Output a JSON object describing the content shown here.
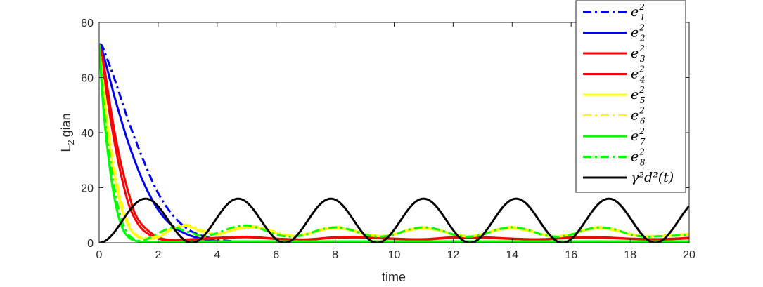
{
  "chart_data": {
    "type": "line",
    "xlabel": "time",
    "ylabel": "gian",
    "ylabel_prefix": "L",
    "ylabel_sub": "2",
    "xlim": [
      0,
      20
    ],
    "ylim": [
      0,
      80
    ],
    "xticks": [
      "0",
      "2",
      "4",
      "6",
      "8",
      "10",
      "12",
      "14",
      "16",
      "18",
      "20"
    ],
    "yticks": [
      "0",
      "20",
      "40",
      "60",
      "80"
    ],
    "grid": false,
    "legend_position": "top-right",
    "series": [
      {
        "name": "e",
        "sub": "1",
        "sup": "2",
        "color": "#0000ff",
        "dash": "dashdot",
        "x": [
          0,
          0.1,
          0.3,
          0.6,
          1.0,
          1.5,
          2.0,
          2.5,
          3.0,
          3.5,
          4.0,
          4.5,
          5.0,
          5.5,
          6.0,
          8,
          10,
          12,
          14,
          16,
          18,
          20
        ],
        "y": [
          72,
          71.5,
          66,
          57,
          44,
          30,
          18,
          10,
          5,
          2.5,
          1.2,
          0.6,
          0.3,
          0.15,
          0.1,
          0.1,
          0.1,
          0.1,
          0.1,
          0.1,
          0.1,
          0.1
        ]
      },
      {
        "name": "e",
        "sub": "2",
        "sup": "2",
        "color": "#0000ff",
        "dash": "solid",
        "x": [
          0,
          0.1,
          0.3,
          0.6,
          1.0,
          1.5,
          2.0,
          2.5,
          3.0,
          3.5,
          4.0,
          4.5,
          5.0,
          6.0,
          8,
          10,
          12,
          14,
          16,
          18,
          20
        ],
        "y": [
          72,
          70,
          62,
          50,
          36,
          22,
          12,
          6,
          3,
          1.4,
          0.6,
          0.3,
          0.15,
          0.1,
          0.1,
          0.1,
          0.1,
          0.1,
          0.1,
          0.1,
          0.1
        ]
      },
      {
        "name": "e",
        "sub": "3",
        "sup": "2",
        "color": "#ff0000",
        "dash": "solid",
        "x": [
          0,
          0.1,
          0.2,
          0.4,
          0.6,
          0.8,
          1.0,
          1.2,
          1.5,
          2.0,
          2.5,
          3.0,
          4.0,
          5.0,
          6.0,
          7.0,
          8.0,
          9.0,
          10.0,
          11.0,
          12.0,
          13.0,
          14.0,
          15.0,
          16.0,
          17.0,
          18.0,
          19.0,
          20.0
        ],
        "y": [
          72,
          65,
          58,
          44,
          32,
          22,
          14,
          9,
          4.5,
          1.5,
          0.8,
          1.0,
          1.6,
          2.0,
          1.4,
          1.1,
          1.8,
          1.9,
          1.4,
          1.2,
          1.8,
          1.8,
          1.4,
          1.2,
          1.8,
          1.8,
          1.4,
          1.2,
          1.6
        ]
      },
      {
        "name": "e",
        "sub": "4",
        "sup": "2",
        "color": "#ff0000",
        "dash": "solid",
        "x": [
          0,
          0.1,
          0.2,
          0.4,
          0.6,
          0.8,
          1.0,
          1.2,
          1.5,
          2.0,
          2.5,
          3.0,
          4.0,
          5.0,
          6.0,
          7.0,
          8.0,
          9.0,
          10.0,
          11.0,
          12.0,
          13.0,
          14.0,
          15.0,
          16.0,
          17.0,
          18.0,
          19.0,
          20.0
        ],
        "y": [
          72,
          68,
          62,
          48,
          36,
          26,
          18,
          11,
          6,
          2.0,
          1.0,
          1.2,
          1.8,
          2.2,
          1.5,
          1.2,
          2.0,
          2.1,
          1.5,
          1.3,
          2.0,
          2.0,
          1.5,
          1.3,
          2.0,
          2.0,
          1.5,
          1.3,
          1.8
        ]
      },
      {
        "name": "e",
        "sub": "5",
        "sup": "2",
        "color": "#ffff00",
        "dash": "solid",
        "x": [
          0,
          0.1,
          0.2,
          0.4,
          0.6,
          0.8,
          1.0,
          1.2,
          1.5,
          2.0,
          2.5,
          3.0,
          3.5,
          4.0,
          4.5,
          5.0,
          5.5,
          6.0,
          6.5,
          7.0,
          7.5,
          8.0,
          8.5,
          9.0,
          9.5,
          10.0,
          10.5,
          11.0,
          11.5,
          12.0,
          12.5,
          13.0,
          13.5,
          14.0,
          14.5,
          15.0,
          15.5,
          16.0,
          16.5,
          17.0,
          17.5,
          18.0,
          18.5,
          19.0,
          19.5,
          20.0
        ],
        "y": [
          72,
          60,
          50,
          32,
          20,
          11,
          6,
          3,
          1.5,
          2.0,
          5.0,
          6.0,
          4.0,
          3.0,
          4.5,
          5.5,
          5.2,
          3.5,
          2.5,
          3.0,
          4.5,
          5.3,
          4.6,
          3.0,
          2.4,
          3.0,
          4.5,
          5.2,
          4.5,
          3.0,
          2.3,
          3.0,
          4.6,
          5.3,
          4.5,
          3.0,
          2.3,
          3.0,
          4.6,
          5.3,
          4.5,
          3.0,
          2.3,
          2.4,
          2.6,
          3.0
        ]
      },
      {
        "name": "e",
        "sub": "6",
        "sup": "2",
        "color": "#ffff00",
        "dash": "dashdot",
        "x": [
          0,
          0.1,
          0.2,
          0.4,
          0.6,
          0.8,
          1.0,
          1.2,
          1.5,
          2.0,
          2.5,
          3.0,
          3.5,
          4.0,
          4.5,
          5.0,
          5.5,
          6.0,
          6.5,
          7.0,
          7.5,
          8.0,
          8.5,
          9.0,
          9.5,
          10.0,
          10.5,
          11.0,
          11.5,
          12.0,
          12.5,
          13.0,
          13.5,
          14.0,
          14.5,
          15.0,
          15.5,
          16.0,
          16.5,
          17.0,
          17.5,
          18.0,
          18.5,
          19.0,
          19.5,
          20.0
        ],
        "y": [
          72,
          62,
          52,
          35,
          22,
          13,
          7,
          3.5,
          1.8,
          2.5,
          5.5,
          6.5,
          4.5,
          3.2,
          4.8,
          6.0,
          5.6,
          3.8,
          2.7,
          3.2,
          4.8,
          5.7,
          5.0,
          3.2,
          2.6,
          3.2,
          4.8,
          5.6,
          4.8,
          3.2,
          2.5,
          3.2,
          4.9,
          5.7,
          4.8,
          3.2,
          2.5,
          3.2,
          4.9,
          5.7,
          4.8,
          3.2,
          2.5,
          2.6,
          2.8,
          3.2
        ]
      },
      {
        "name": "e",
        "sub": "7",
        "sup": "2",
        "color": "#00ff00",
        "dash": "solid",
        "x": [
          0,
          0.1,
          0.2,
          0.4,
          0.6,
          0.8,
          1.0,
          1.2,
          1.5,
          2.0,
          3.0,
          4.0,
          6.0,
          8.0,
          10.0,
          12.0,
          14.0,
          16.0,
          18.0,
          20.0
        ],
        "y": [
          72,
          55,
          42,
          24,
          12,
          5,
          2,
          0.8,
          0.3,
          0.2,
          0.4,
          0.5,
          0.5,
          0.5,
          0.5,
          0.5,
          0.5,
          0.5,
          0.5,
          0.5
        ]
      },
      {
        "name": "e",
        "sub": "8",
        "sup": "2",
        "color": "#00ff00",
        "dash": "dashdot",
        "x": [
          0,
          0.1,
          0.2,
          0.4,
          0.6,
          0.8,
          1.0,
          1.2,
          1.5,
          2.0,
          2.5,
          3.0,
          3.5,
          4.0,
          4.5,
          5.0,
          5.5,
          6.0,
          6.5,
          7.0,
          7.5,
          8.0,
          8.5,
          9.0,
          9.5,
          10.0,
          10.5,
          11.0,
          11.5,
          12.0,
          12.5,
          13.0,
          13.5,
          14.0,
          14.5,
          15.0,
          15.5,
          16.0,
          16.5,
          17.0,
          17.5,
          18.0,
          18.5,
          19.0,
          19.5,
          20.0
        ],
        "y": [
          72,
          58,
          45,
          28,
          15,
          7,
          3,
          1.2,
          0.8,
          3.5,
          5.5,
          4.0,
          2.5,
          3.5,
          5.5,
          6.3,
          5.0,
          3.0,
          2.2,
          3.0,
          4.8,
          5.6,
          4.8,
          3.0,
          2.2,
          3.0,
          4.8,
          5.6,
          4.8,
          3.0,
          2.2,
          3.0,
          4.8,
          5.6,
          4.8,
          3.0,
          2.2,
          3.0,
          4.8,
          5.6,
          4.8,
          3.0,
          2.2,
          2.4,
          2.6,
          3.0
        ]
      },
      {
        "name": "γ²d²(t)",
        "label": "γ²d²(t)",
        "color": "#000000",
        "dash": "solid",
        "x": [
          0,
          20
        ],
        "y": [
          0,
          13
        ],
        "formula": "sin_squared",
        "amplitude": 16,
        "omega": 1
      }
    ]
  }
}
